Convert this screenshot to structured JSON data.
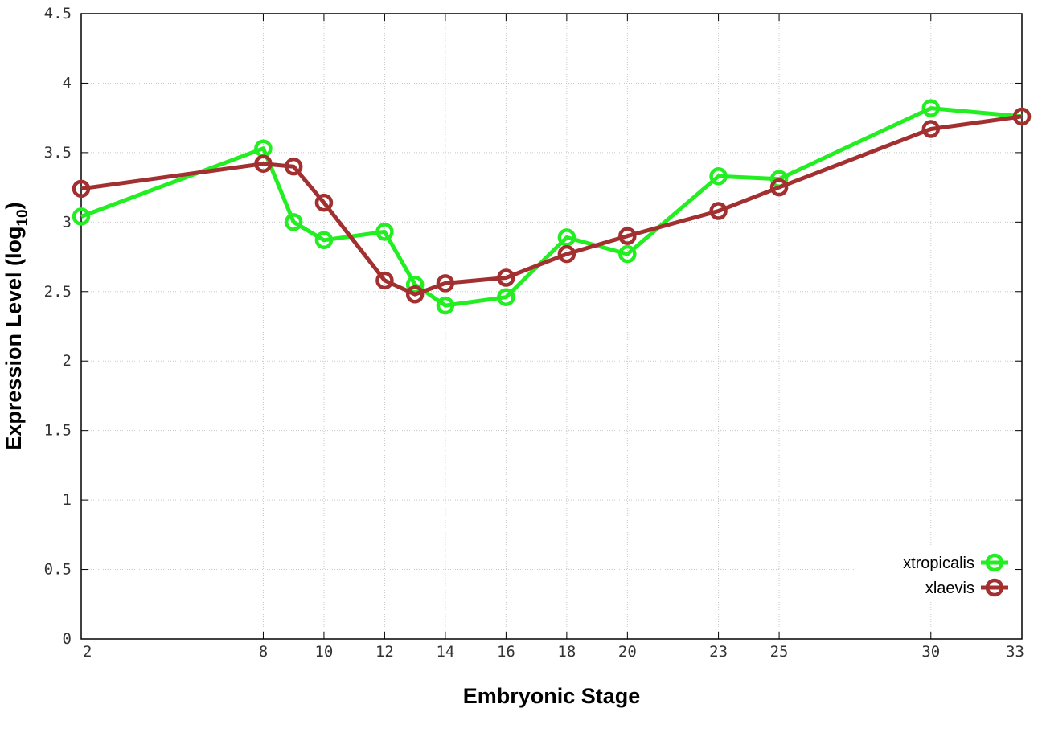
{
  "chart_data": {
    "type": "line",
    "xlabel": "Embryonic Stage",
    "ylabel": "Expression Level (log",
    "ylabel_sub": "10",
    "ylabel_close": ")",
    "xlim": [
      2,
      33
    ],
    "ylim": [
      0,
      4.5
    ],
    "x_ticks": [
      2,
      8,
      10,
      12,
      14,
      16,
      18,
      20,
      23,
      25,
      30,
      33
    ],
    "y_ticks": [
      "0",
      "0.5",
      "1",
      "1.5",
      "2",
      "2.5",
      "3",
      "3.5",
      "4",
      "4.5"
    ],
    "grid": true,
    "legend_position": "bottom-right",
    "series": [
      {
        "name": "xtropicalis",
        "color": "#22ee22",
        "x": [
          2,
          8,
          9,
          10,
          12,
          13,
          14,
          16,
          18,
          20,
          23,
          25,
          30,
          33
        ],
        "y": [
          3.04,
          3.53,
          3.0,
          2.87,
          2.93,
          2.55,
          2.4,
          2.46,
          2.89,
          2.77,
          3.33,
          3.31,
          3.82,
          3.76
        ]
      },
      {
        "name": "xlaevis",
        "color": "#a33030",
        "x": [
          2,
          8,
          9,
          10,
          12,
          13,
          14,
          16,
          18,
          20,
          23,
          25,
          30,
          33
        ],
        "y": [
          3.24,
          3.42,
          3.4,
          3.14,
          2.58,
          2.48,
          2.56,
          2.6,
          2.77,
          2.9,
          3.08,
          3.25,
          3.67,
          3.76
        ]
      }
    ]
  }
}
